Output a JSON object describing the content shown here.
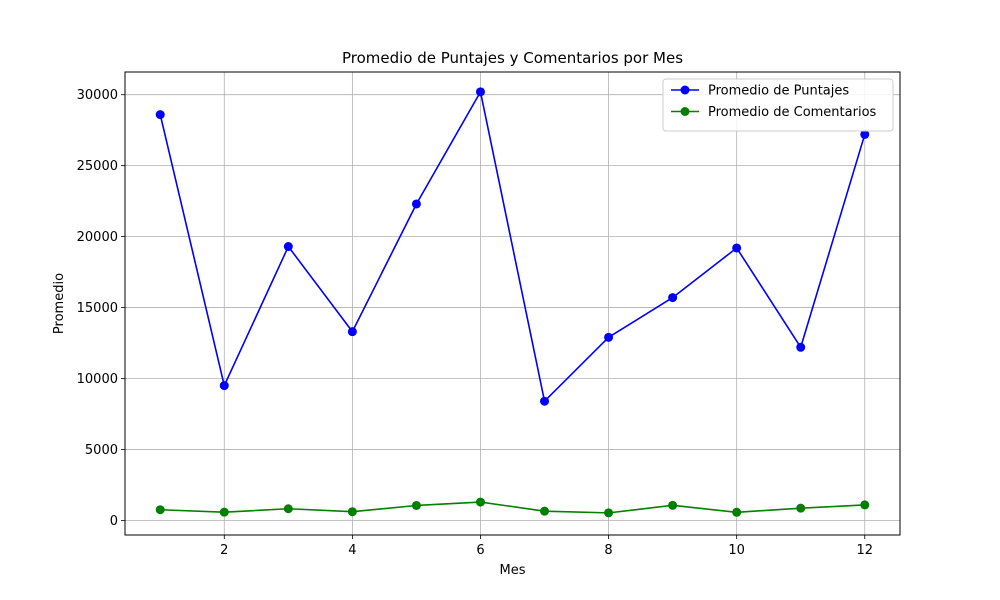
{
  "chart_data": {
    "type": "line",
    "title": "Promedio de Puntajes y Comentarios por Mes",
    "xlabel": "Mes",
    "ylabel": "Promedio",
    "xlim": [
      0.45,
      12.55
    ],
    "ylim": [
      -1030,
      31600
    ],
    "xticks": [
      2,
      4,
      6,
      8,
      10,
      12
    ],
    "yticks": [
      0,
      5000,
      10000,
      15000,
      20000,
      25000,
      30000
    ],
    "grid": true,
    "legend_position": "upper right",
    "x": [
      1,
      2,
      3,
      4,
      5,
      6,
      7,
      8,
      9,
      10,
      11,
      12
    ],
    "series": [
      {
        "name": "Promedio de Puntajes",
        "color": "#0000ff",
        "marker": "circle",
        "values": [
          28600,
          9500,
          19300,
          13300,
          22300,
          30200,
          8400,
          12900,
          15700,
          19200,
          12200,
          27200
        ]
      },
      {
        "name": "Promedio de Comentarios",
        "color": "#008000",
        "marker": "circle",
        "values": [
          750,
          580,
          820,
          610,
          1050,
          1290,
          650,
          530,
          1060,
          570,
          860,
          1090
        ]
      }
    ]
  }
}
